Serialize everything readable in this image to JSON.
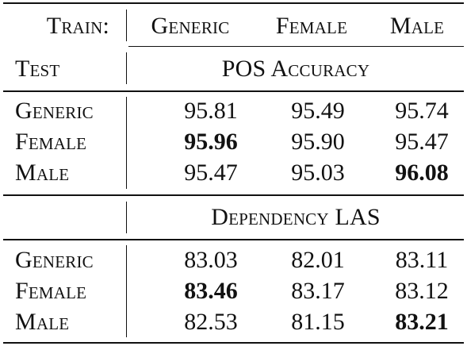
{
  "header": {
    "train_label": "Train:",
    "test_label": "Test",
    "train_conditions": [
      "Generic",
      "Female",
      "Male"
    ]
  },
  "sections": [
    {
      "title": "POS Accuracy",
      "rows": [
        {
          "label": "Generic",
          "values": [
            "95.81",
            "95.49",
            "95.74"
          ],
          "bold_index": -1
        },
        {
          "label": "Female",
          "values": [
            "95.96",
            "95.90",
            "95.47"
          ],
          "bold_index": 0
        },
        {
          "label": "Male",
          "values": [
            "95.47",
            "95.03",
            "96.08"
          ],
          "bold_index": 2
        }
      ]
    },
    {
      "title": "Dependency LAS",
      "rows": [
        {
          "label": "Generic",
          "values": [
            "83.03",
            "82.01",
            "83.11"
          ],
          "bold_index": -1
        },
        {
          "label": "Female",
          "values": [
            "83.46",
            "83.17",
            "83.12"
          ],
          "bold_index": 0
        },
        {
          "label": "Male",
          "values": [
            "82.53",
            "81.15",
            "83.21"
          ],
          "bold_index": 2
        }
      ]
    }
  ]
}
